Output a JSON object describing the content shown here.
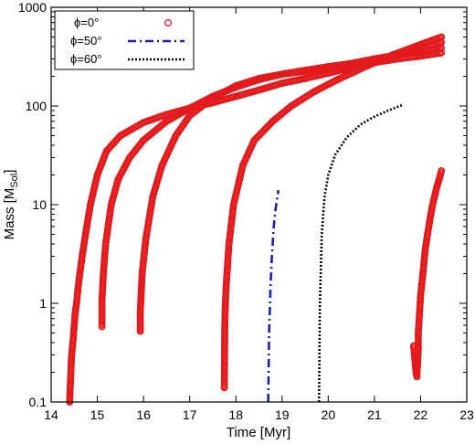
{
  "chart_data": {
    "type": "scatter",
    "xlabel": "Time [Myr]",
    "ylabel_main": "Mass [M",
    "ylabel_sub": "Sol",
    "ylabel_end": "]",
    "xlim": [
      14,
      23
    ],
    "ylim": [
      0.1,
      1000
    ],
    "yscale": "log",
    "x_ticks": [
      14,
      15,
      16,
      17,
      18,
      19,
      20,
      21,
      22,
      23
    ],
    "x_tick_labels": [
      "14",
      "15",
      "16",
      "17",
      "18",
      "19",
      "20",
      "21",
      "22",
      "23"
    ],
    "y_ticks": [
      0.1,
      1,
      10,
      100,
      1000
    ],
    "y_tick_labels": [
      "0.1",
      "1",
      "10",
      "100",
      "1000"
    ],
    "grid": false,
    "legend_position": "top-left",
    "legend": [
      {
        "label": "ϕ=0°",
        "style": "circles",
        "color": "#e31a1c"
      },
      {
        "label": "ϕ=50°",
        "style": "dash-dot",
        "color": "#1c1cb4"
      },
      {
        "label": "ϕ=60°",
        "style": "dotted",
        "color": "#000000"
      }
    ],
    "series": [
      {
        "label_ref": 0,
        "style": "circles",
        "color": "#e31a1c",
        "tracks": [
          [
            [
              14.4,
              0.1
            ],
            [
              14.41,
              0.13
            ],
            [
              14.42,
              0.17
            ],
            [
              14.43,
              0.22
            ],
            [
              14.44,
              0.28
            ],
            [
              14.46,
              0.36
            ],
            [
              14.48,
              0.45
            ],
            [
              14.5,
              0.6
            ],
            [
              14.52,
              0.8
            ],
            [
              14.55,
              1.0
            ],
            [
              14.58,
              1.4
            ],
            [
              14.62,
              2.0
            ],
            [
              14.68,
              3.2
            ],
            [
              14.75,
              5.2
            ],
            [
              14.85,
              10
            ],
            [
              15.0,
              20
            ],
            [
              15.2,
              35
            ],
            [
              15.5,
              50
            ],
            [
              16.0,
              68
            ],
            [
              16.5,
              82
            ],
            [
              17.0,
              95
            ],
            [
              17.5,
              108
            ],
            [
              18.0,
              125
            ],
            [
              18.5,
              145
            ],
            [
              19.0,
              170
            ],
            [
              19.5,
              190
            ],
            [
              20.0,
              215
            ],
            [
              20.5,
              245
            ],
            [
              21.0,
              280
            ],
            [
              21.5,
              330
            ],
            [
              22.0,
              385
            ],
            [
              22.45,
              440
            ]
          ],
          [
            [
              15.1,
              0.58
            ],
            [
              15.1,
              1.12
            ],
            [
              15.11,
              1.3
            ],
            [
              15.13,
              2.0
            ],
            [
              15.18,
              4.0
            ],
            [
              15.3,
              10
            ],
            [
              15.45,
              18
            ],
            [
              15.7,
              30
            ],
            [
              16.0,
              45
            ],
            [
              16.5,
              70
            ],
            [
              17.0,
              95
            ],
            [
              17.5,
              125
            ],
            [
              18.0,
              155
            ],
            [
              18.5,
              185
            ],
            [
              19.0,
              210
            ],
            [
              19.5,
              230
            ],
            [
              20.0,
              250
            ],
            [
              20.5,
              270
            ],
            [
              21.0,
              300
            ],
            [
              21.5,
              330
            ],
            [
              22.0,
              360
            ],
            [
              22.45,
              385
            ]
          ],
          [
            [
              15.93,
              0.52
            ],
            [
              15.93,
              0.8
            ],
            [
              15.94,
              1.0
            ],
            [
              15.97,
              2.0
            ],
            [
              16.05,
              4.5
            ],
            [
              16.2,
              12
            ],
            [
              16.4,
              25
            ],
            [
              16.7,
              50
            ],
            [
              17.0,
              80
            ],
            [
              17.5,
              120
            ],
            [
              18.0,
              160
            ],
            [
              18.5,
              190
            ],
            [
              19.0,
              210
            ],
            [
              19.5,
              225
            ],
            [
              20.0,
              240
            ],
            [
              20.5,
              255
            ],
            [
              21.0,
              275
            ],
            [
              21.5,
              300
            ],
            [
              22.0,
              320
            ],
            [
              22.45,
              345
            ]
          ],
          [
            [
              17.75,
              0.14
            ],
            [
              17.76,
              0.58
            ],
            [
              17.77,
              0.92
            ],
            [
              17.79,
              1.5
            ],
            [
              17.85,
              4.0
            ],
            [
              17.95,
              10
            ],
            [
              18.15,
              25
            ],
            [
              18.4,
              45
            ],
            [
              18.8,
              70
            ],
            [
              19.2,
              100
            ],
            [
              19.7,
              140
            ],
            [
              20.2,
              185
            ],
            [
              20.8,
              250
            ],
            [
              21.4,
              330
            ],
            [
              22.0,
              420
            ],
            [
              22.45,
              500
            ]
          ],
          [
            [
              21.85,
              0.37
            ],
            [
              21.9,
              0.2
            ],
            [
              21.92,
              0.18
            ],
            [
              21.95,
              0.35
            ],
            [
              21.95,
              0.5
            ],
            [
              22.0,
              1.2
            ],
            [
              22.05,
              2.0
            ],
            [
              22.1,
              3.5
            ],
            [
              22.15,
              5.0
            ],
            [
              22.2,
              7.0
            ],
            [
              22.25,
              9.5
            ],
            [
              22.3,
              12
            ],
            [
              22.35,
              15
            ],
            [
              22.4,
              18
            ],
            [
              22.45,
              22
            ]
          ]
        ]
      },
      {
        "label_ref": 1,
        "style": "dash-dot",
        "color": "#1c1cb4",
        "points": [
          [
            18.7,
            0.1
          ],
          [
            18.72,
            0.5
          ],
          [
            18.75,
            1.5
          ],
          [
            18.78,
            3.0
          ],
          [
            18.82,
            6.0
          ],
          [
            18.86,
            9.0
          ],
          [
            18.92,
            14
          ]
        ]
      },
      {
        "label_ref": 2,
        "style": "dotted",
        "color": "#000000",
        "points": [
          [
            19.8,
            0.1
          ],
          [
            19.82,
            1.0
          ],
          [
            19.86,
            5.0
          ],
          [
            19.92,
            12
          ],
          [
            20.0,
            20
          ],
          [
            20.15,
            32
          ],
          [
            20.4,
            48
          ],
          [
            20.7,
            65
          ],
          [
            21.0,
            78
          ],
          [
            21.3,
            90
          ],
          [
            21.6,
            102
          ]
        ]
      }
    ]
  }
}
